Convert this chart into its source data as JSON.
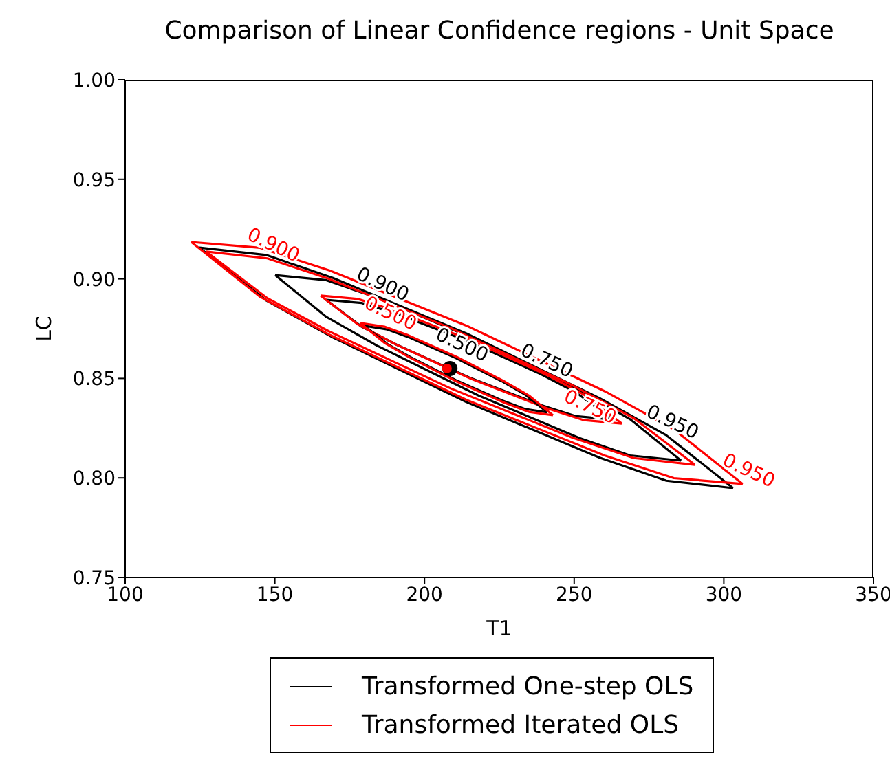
{
  "chart_data": {
    "type": "line",
    "title": "Comparison of Linear Confidence regions - Unit Space",
    "xlabel": "T1",
    "ylabel": "LC",
    "xlim": [
      100,
      350
    ],
    "xticks": [
      100,
      150,
      200,
      250,
      300,
      350
    ],
    "ylim": [
      0.75,
      1.0
    ],
    "yticks": [
      0.75,
      {
        "value": 0.8,
        "label": "0.80"
      },
      0.85,
      {
        "value": 0.9,
        "label": "0.90"
      },
      0.95,
      {
        "value": 1.0,
        "label": "1.00"
      }
    ],
    "grid": false,
    "legend": "bottom",
    "annotations": [
      {
        "text": "0.950",
        "x": 280.8,
        "y": 0.8214
      },
      {
        "text": "0.950",
        "x": 306.3,
        "y": 0.797
      },
      {
        "text": "0.900",
        "x": 184.0,
        "y": 0.8906
      },
      {
        "text": "0.900",
        "x": 147.5,
        "y": 0.9103
      },
      {
        "text": "0.750",
        "x": 238.8,
        "y": 0.8522
      },
      {
        "text": "0.750",
        "x": 253.3,
        "y": 0.829
      },
      {
        "text": "0.500",
        "x": 210.5,
        "y": 0.8602
      },
      {
        "text": "0.500",
        "x": 186.6,
        "y": 0.876
      }
    ],
    "series": [
      {
        "name": "Transformed One-step OLS",
        "color": "#000000",
        "x": [
          124.8,
          147.1,
          169.4,
          214.0,
          258.5,
          280.8,
          303.1
        ],
        "values": [
          0.9157,
          0.912,
          0.9005,
          0.8726,
          0.8401,
          0.8214,
          0.7949
        ]
      },
      {
        "color": "#000000",
        "x": [
          124.8,
          147.1,
          169.4,
          214.0,
          258.5,
          280.8,
          303.1
        ],
        "values": [
          0.9157,
          0.8892,
          0.8706,
          0.8381,
          0.8102,
          0.7986,
          0.7949
        ]
      },
      {
        "name": "Transformed Iterated OLS",
        "color": "#ff0000",
        "x": [
          122.1,
          145.1,
          168.2,
          214.2,
          260.3,
          283.3,
          306.3
        ],
        "values": [
          0.9185,
          0.9156,
          0.9043,
          0.8764,
          0.8435,
          0.8244,
          0.797
        ]
      },
      {
        "color": "#ff0000",
        "x": [
          122.1,
          145.1,
          168.2,
          214.2,
          260.3,
          283.3,
          306.3
        ],
        "values": [
          0.9185,
          0.891,
          0.872,
          0.8391,
          0.8112,
          0.7999,
          0.797
        ]
      },
      {
        "color": "#000000",
        "x": [
          150.1,
          167.0,
          184.0,
          217.9,
          251.8,
          268.7,
          285.7
        ],
        "values": [
          0.9019,
          0.8994,
          0.8906,
          0.8691,
          0.844,
          0.8295,
          0.8087
        ]
      },
      {
        "color": "#000000",
        "x": [
          150.1,
          167.0,
          184.0,
          217.9,
          251.8,
          268.7,
          285.7
        ],
        "values": [
          0.9019,
          0.8811,
          0.8666,
          0.8415,
          0.82,
          0.8113,
          0.8087
        ]
      },
      {
        "color": "#ff0000",
        "x": [
          127.1,
          147.5,
          167.9,
          208.7,
          249.5,
          269.9,
          290.3
        ],
        "values": [
          0.9137,
          0.9103,
          0.9001,
          0.8753,
          0.8465,
          0.83,
          0.8066
        ]
      },
      {
        "color": "#ff0000",
        "x": [
          127.1,
          147.5,
          167.9,
          208.7,
          249.5,
          269.9,
          290.3
        ],
        "values": [
          0.9137,
          0.8903,
          0.8738,
          0.845,
          0.8202,
          0.81,
          0.8066
        ]
      },
      {
        "color": "#000000",
        "x": [
          167.1,
          179.0,
          191.0,
          214.9,
          238.8,
          250.7,
          262.7
        ],
        "values": [
          0.8895,
          0.8879,
          0.8823,
          0.8684,
          0.8522,
          0.8429,
          0.8294
        ]
      },
      {
        "color": "#000000",
        "x": [
          167.1,
          179.0,
          191.0,
          214.9,
          238.8,
          250.7,
          262.7
        ],
        "values": [
          0.8895,
          0.876,
          0.8667,
          0.8505,
          0.8367,
          0.831,
          0.8294
        ]
      },
      {
        "color": "#ff0000",
        "x": [
          165.3,
          177.8,
          190.4,
          215.6,
          240.8,
          253.3,
          265.9
        ],
        "values": [
          0.8916,
          0.8899,
          0.8839,
          0.8691,
          0.8518,
          0.8418,
          0.8273
        ]
      },
      {
        "color": "#ff0000",
        "x": [
          165.3,
          177.8,
          190.4,
          215.6,
          240.8,
          253.3,
          265.9
        ],
        "values": [
          0.8916,
          0.8771,
          0.8671,
          0.8498,
          0.835,
          0.829,
          0.8273
        ]
      },
      {
        "color": "#000000",
        "x": [
          180.0,
          187.6,
          195.3,
          210.5,
          225.8,
          233.5,
          241.1
        ],
        "values": [
          0.8764,
          0.8746,
          0.8703,
          0.8602,
          0.8486,
          0.842,
          0.8329
        ]
      },
      {
        "color": "#000000",
        "x": [
          180.0,
          187.6,
          195.3,
          210.5,
          225.8,
          233.5,
          241.1
        ],
        "values": [
          0.8764,
          0.8673,
          0.8607,
          0.8491,
          0.839,
          0.8347,
          0.8329
        ]
      },
      {
        "color": "#ff0000",
        "x": [
          178.6,
          186.6,
          194.7,
          210.8,
          226.8,
          234.9,
          242.9
        ],
        "values": [
          0.8778,
          0.876,
          0.8716,
          0.8608,
          0.8484,
          0.8414,
          0.8315
        ]
      },
      {
        "color": "#ff0000",
        "x": [
          178.6,
          186.6,
          194.7,
          210.8,
          226.8,
          234.9,
          242.9
        ],
        "values": [
          0.8778,
          0.8679,
          0.8608,
          0.8484,
          0.8377,
          0.8332,
          0.8315
        ]
      },
      {
        "type": "scatter",
        "color": "#000000",
        "x": [
          208.5
        ],
        "values": [
          0.855
        ]
      },
      {
        "type": "scatter",
        "color": "#ff0000",
        "x": [
          207.5
        ],
        "values": [
          0.855
        ]
      }
    ]
  }
}
